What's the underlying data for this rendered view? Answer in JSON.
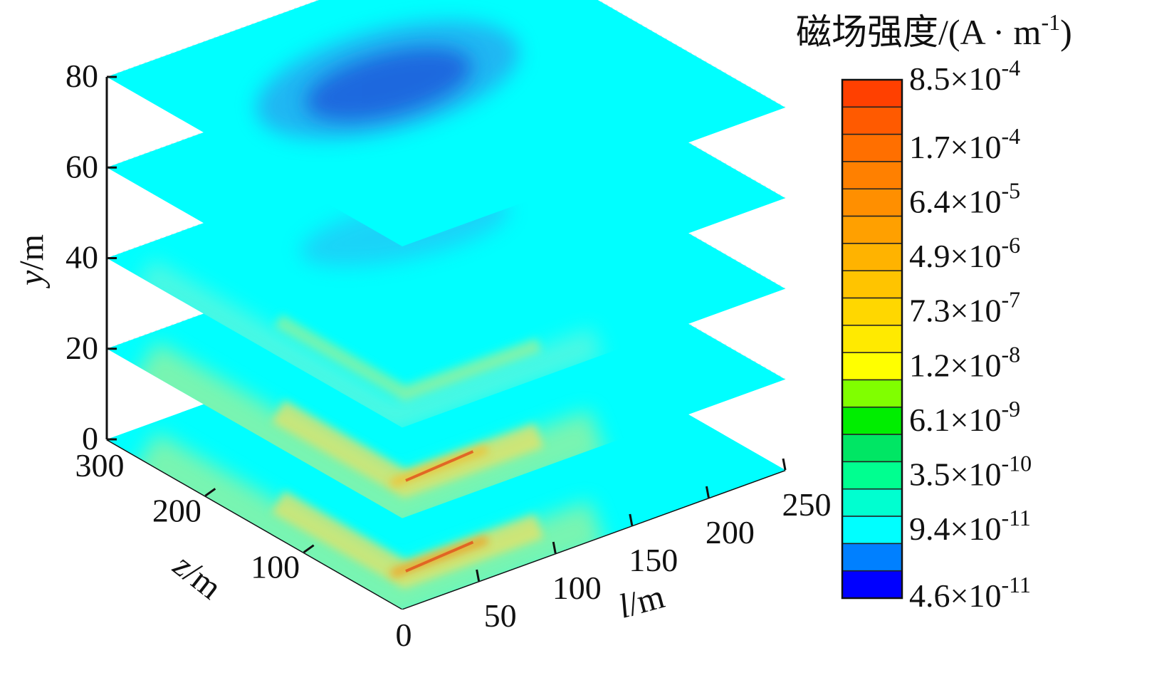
{
  "chart_data": {
    "type": "heatmap",
    "subtype": "3d-stacked-slices",
    "x_axis": {
      "label_var": "l",
      "label_unit": "/m",
      "ticks": [
        "50",
        "100",
        "150",
        "200",
        "250"
      ],
      "range": [
        0,
        250
      ]
    },
    "z_axis": {
      "label_var": "z",
      "label_unit": "/m",
      "ticks": [
        "0",
        "100",
        "200",
        "300"
      ],
      "range": [
        0,
        300
      ]
    },
    "y_axis": {
      "label_var": "y",
      "label_unit": "/m",
      "ticks": [
        "0",
        "20",
        "40",
        "60",
        "80"
      ],
      "range": [
        0,
        80
      ]
    },
    "slice_levels_y": [
      0,
      20,
      40,
      60,
      80
    ],
    "grid": true,
    "colorbar": {
      "title": "磁场强度/(A · m",
      "title_exp": "-1",
      "title_close": ")",
      "position": "right",
      "levels": [
        {
          "mant": "8.5",
          "exp": "-4",
          "color": "#ff4000"
        },
        {
          "mant": "",
          "exp": "",
          "color": "#ff5a00"
        },
        {
          "mant": "1.7",
          "exp": "-4",
          "color": "#ff6f00"
        },
        {
          "mant": "",
          "exp": "",
          "color": "#ff8000"
        },
        {
          "mant": "6.4",
          "exp": "-5",
          "color": "#ff8f00"
        },
        {
          "mant": "",
          "exp": "",
          "color": "#ffa000"
        },
        {
          "mant": "4.9",
          "exp": "-6",
          "color": "#ffb300"
        },
        {
          "mant": "",
          "exp": "",
          "color": "#ffc400"
        },
        {
          "mant": "7.3",
          "exp": "-7",
          "color": "#ffd700"
        },
        {
          "mant": "",
          "exp": "",
          "color": "#ffea00"
        },
        {
          "mant": "1.2",
          "exp": "-8",
          "color": "#ffff00"
        },
        {
          "mant": "",
          "exp": "",
          "color": "#80ff00"
        },
        {
          "mant": "6.1",
          "exp": "-9",
          "color": "#00ee00"
        },
        {
          "mant": "",
          "exp": "",
          "color": "#00e664"
        },
        {
          "mant": "3.5",
          "exp": "-10",
          "color": "#00ff90"
        },
        {
          "mant": "",
          "exp": "",
          "color": "#00ffd0"
        },
        {
          "mant": "9.4",
          "exp": "-11",
          "color": "#00ffff"
        },
        {
          "mant": "",
          "exp": "",
          "color": "#0080ff"
        },
        {
          "mant": "4.6",
          "exp": "-11",
          "color": "#0000ff"
        }
      ]
    },
    "slices": [
      {
        "y": 80,
        "base_color": "#00ffff",
        "feature": "broad-minimum",
        "feature_color": "#1a4fd8"
      },
      {
        "y": 60,
        "base_color": "#00ffff",
        "feature": "faint-minimum",
        "feature_color": "#3aa0f0"
      },
      {
        "y": 40,
        "base_color": "#00ffff",
        "feature": "weak-band",
        "feature_color": "#b5e37a"
      },
      {
        "y": 20,
        "base_color": "#00ffff",
        "feature": "band-peak",
        "feature_color": "#f2c030"
      },
      {
        "y": 0,
        "base_color": "#00ffff",
        "feature": "band-peak",
        "feature_color": "#f2a020"
      }
    ]
  }
}
